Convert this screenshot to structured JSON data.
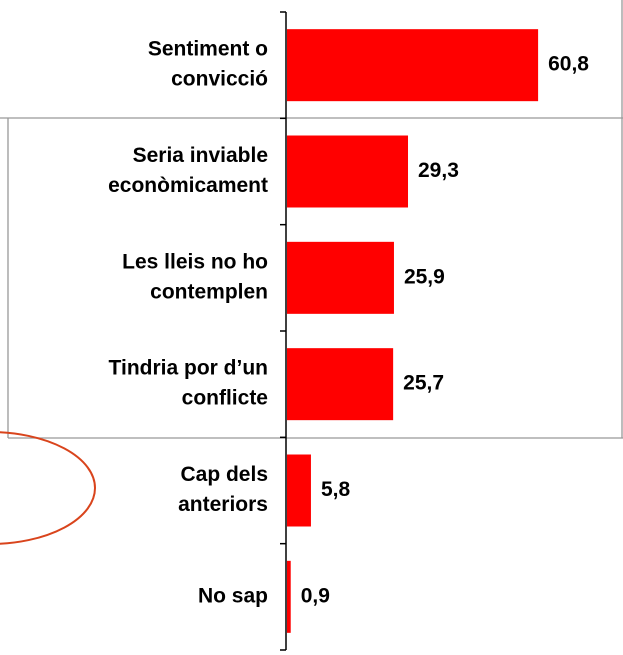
{
  "chart_data": {
    "type": "bar",
    "orientation": "horizontal",
    "categories": [
      [
        "Sentiment o",
        "convicció"
      ],
      [
        "Seria inviable",
        "econòmicament"
      ],
      [
        "Les lleis no ho",
        "contemplen"
      ],
      [
        "Tindria por d’un",
        "conflicte"
      ],
      [
        "Cap dels",
        "anteriors"
      ],
      [
        "No sap"
      ]
    ],
    "values": [
      60.8,
      29.3,
      25.9,
      25.7,
      5.8,
      0.9
    ],
    "value_labels": [
      "60,8",
      "29,3",
      "25,9",
      "25,7",
      "5,8",
      "0,9"
    ],
    "color": "#ff0000"
  }
}
